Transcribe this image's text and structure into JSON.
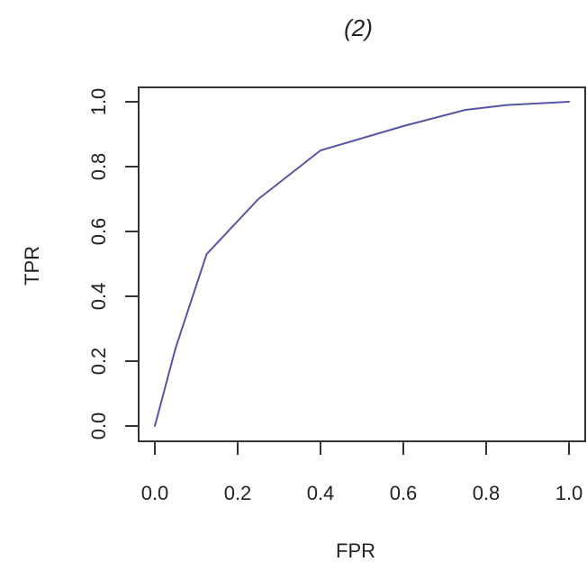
{
  "chart_data": {
    "type": "line",
    "title": "(2)",
    "xlabel": "FPR",
    "ylabel": "TPR",
    "xlim": [
      0,
      1
    ],
    "ylim": [
      0,
      1
    ],
    "xticks": [
      "0.0",
      "0.2",
      "0.4",
      "0.6",
      "0.8",
      "1.0"
    ],
    "yticks": [
      "0.0",
      "0.2",
      "0.4",
      "0.6",
      "0.8",
      "1.0"
    ],
    "grid": false,
    "line_color": "#5555a8",
    "series": [
      {
        "x": [
          0.0,
          0.05,
          0.125,
          0.25,
          0.4,
          0.6,
          0.75,
          0.85,
          1.0
        ],
        "y": [
          0.0,
          0.24,
          0.53,
          0.7,
          0.85,
          0.925,
          0.975,
          0.99,
          1.0
        ]
      }
    ]
  }
}
